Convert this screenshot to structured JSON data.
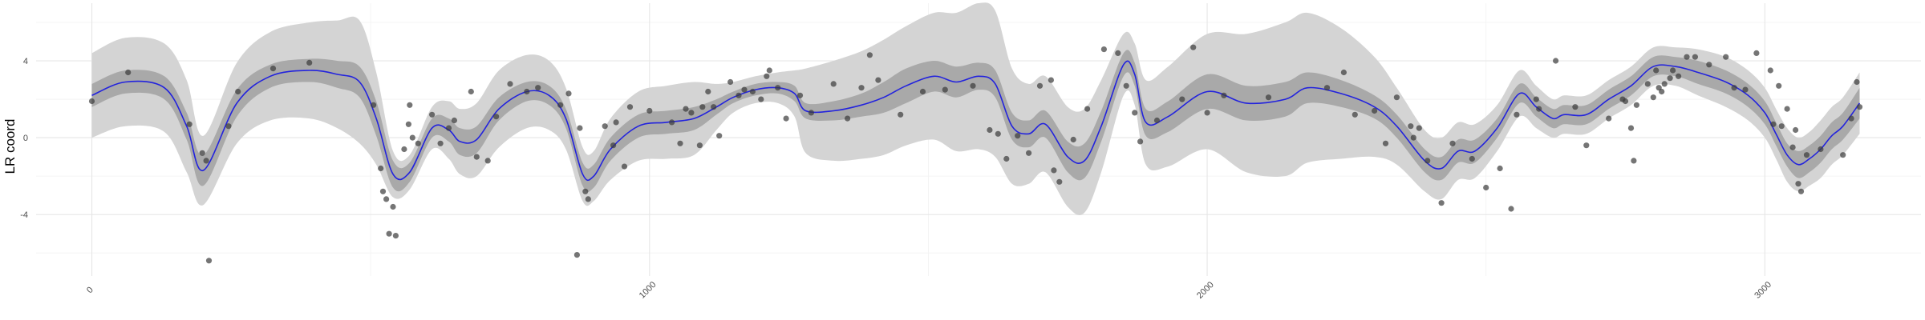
{
  "chart_data": {
    "type": "scatter",
    "title": "",
    "xlabel": "",
    "ylabel": "LR coord",
    "xlim": [
      -100,
      3280
    ],
    "ylim": [
      -7.2,
      7.0
    ],
    "x_ticks": [
      0,
      1000,
      2000,
      3000
    ],
    "x_tick_labels": [
      "0",
      "1000",
      "2000",
      "3000"
    ],
    "y_ticks": [
      -4,
      0,
      4
    ],
    "y_tick_labels": [
      "-4",
      "0",
      "4"
    ],
    "grid": true,
    "legend": "none",
    "colors": {
      "line": "#2323dd",
      "points": "#3a3a3a",
      "inner_band": "#a9a9a9",
      "outer_band": "#d4d4d4",
      "grid_major": "#e6e6e6",
      "grid_minor": "#f2f2f2"
    },
    "smooth_curve": {
      "x": [
        0,
        60,
        130,
        170,
        200,
        260,
        320,
        390,
        440,
        480,
        510,
        540,
        570,
        610,
        640,
        660,
        690,
        730,
        780,
        820,
        850,
        880,
        900,
        930,
        980,
        1030,
        1080,
        1120,
        1150,
        1190,
        1230,
        1260,
        1280,
        1330,
        1380,
        1420,
        1460,
        1510,
        1550,
        1590,
        1620,
        1650,
        1680,
        1710,
        1750,
        1780,
        1810,
        1850,
        1870,
        1890,
        1930,
        2000,
        2070,
        2140,
        2180,
        2240,
        2300,
        2340,
        2390,
        2420,
        2450,
        2480,
        2520,
        2560,
        2590,
        2620,
        2640,
        2680,
        2720,
        2760,
        2800,
        2840,
        2880,
        2930,
        2970,
        3000,
        3020,
        3040,
        3060,
        3080,
        3100,
        3120,
        3140,
        3170
      ],
      "y": [
        2.2,
        2.9,
        2.6,
        0.6,
        -1.7,
        1.8,
        3.2,
        3.5,
        3.3,
        2.9,
        1.0,
        -1.9,
        -1.8,
        0.5,
        0.4,
        -0.2,
        -0.1,
        1.5,
        2.4,
        2.2,
        1.0,
        -1.9,
        -2.0,
        -0.6,
        0.6,
        0.8,
        1.0,
        1.6,
        2.1,
        2.5,
        2.6,
        2.3,
        1.4,
        1.4,
        1.7,
        2.1,
        2.7,
        3.2,
        2.9,
        3.2,
        2.8,
        0.6,
        0.2,
        0.7,
        -1.0,
        -1.2,
        0.6,
        3.8,
        3.3,
        0.8,
        1.1,
        2.4,
        1.8,
        2.0,
        2.6,
        2.3,
        1.6,
        0.6,
        -1.2,
        -1.6,
        -0.7,
        -0.7,
        0.5,
        2.3,
        1.6,
        1.0,
        1.2,
        1.2,
        2.0,
        2.7,
        3.7,
        3.7,
        3.4,
        2.9,
        2.2,
        1.3,
        0.2,
        -0.9,
        -1.4,
        -1.1,
        -0.6,
        0.1,
        0.6,
        1.8
      ],
      "band_inner_halfwidth": [
        0.6,
        0.6,
        0.6,
        0.7,
        0.8,
        0.7,
        0.6,
        0.6,
        0.7,
        0.8,
        0.9,
        0.7,
        0.5,
        0.5,
        0.6,
        0.7,
        0.7,
        0.6,
        0.5,
        0.5,
        0.5,
        0.6,
        0.6,
        0.6,
        0.6,
        0.6,
        0.6,
        0.4,
        0.3,
        0.3,
        0.3,
        0.4,
        0.4,
        0.5,
        0.6,
        0.8,
        0.9,
        0.8,
        0.8,
        0.7,
        0.7,
        0.7,
        0.7,
        0.7,
        0.8,
        0.9,
        0.8,
        0.6,
        0.6,
        0.7,
        0.8,
        0.9,
        0.9,
        0.9,
        0.8,
        0.7,
        0.6,
        0.6,
        0.6,
        0.6,
        0.6,
        0.6,
        0.5,
        0.5,
        0.5,
        0.5,
        0.5,
        0.5,
        0.5,
        0.5,
        0.5,
        0.5,
        0.6,
        0.6,
        0.6,
        0.6,
        0.6,
        0.6,
        0.7,
        0.7,
        0.7,
        0.7,
        0.7,
        0.8
      ],
      "band_outer_halfwidth": [
        2.2,
        2.3,
        2.3,
        2.4,
        1.8,
        2.1,
        2.3,
        2.5,
        2.8,
        3.2,
        2.4,
        1.2,
        0.9,
        1.1,
        1.5,
        1.7,
        1.9,
        2.0,
        1.9,
        1.8,
        1.6,
        1.4,
        1.3,
        1.6,
        1.8,
        1.9,
        1.9,
        1.2,
        0.8,
        0.7,
        0.8,
        1.2,
        2.2,
        2.6,
        2.8,
        3.0,
        3.1,
        3.3,
        3.6,
        3.8,
        3.8,
        3.0,
        2.6,
        2.5,
        2.6,
        2.7,
        2.4,
        1.6,
        1.6,
        2.2,
        2.6,
        3.0,
        3.6,
        4.0,
        3.9,
        3.4,
        2.6,
        2.0,
        1.6,
        1.6,
        1.5,
        1.4,
        1.2,
        1.2,
        1.1,
        1.0,
        1.0,
        1.0,
        1.0,
        1.0,
        1.0,
        1.0,
        1.2,
        1.3,
        1.3,
        1.3,
        1.3,
        1.4,
        1.4,
        1.4,
        1.5,
        1.5,
        1.5,
        1.6
      ]
    },
    "points": [
      {
        "x": 0,
        "y": 1.9
      },
      {
        "x": 65,
        "y": 3.4
      },
      {
        "x": 175,
        "y": 0.7
      },
      {
        "x": 198,
        "y": -0.8
      },
      {
        "x": 205,
        "y": -1.2
      },
      {
        "x": 210,
        "y": -6.4
      },
      {
        "x": 245,
        "y": 0.6
      },
      {
        "x": 262,
        "y": 2.4
      },
      {
        "x": 325,
        "y": 3.6
      },
      {
        "x": 390,
        "y": 3.9
      },
      {
        "x": 505,
        "y": 1.7
      },
      {
        "x": 518,
        "y": -1.6
      },
      {
        "x": 522,
        "y": -2.8
      },
      {
        "x": 528,
        "y": -3.2
      },
      {
        "x": 533,
        "y": -5.0
      },
      {
        "x": 540,
        "y": -3.6
      },
      {
        "x": 545,
        "y": -5.1
      },
      {
        "x": 560,
        "y": -0.6
      },
      {
        "x": 568,
        "y": 0.7
      },
      {
        "x": 570,
        "y": 1.7
      },
      {
        "x": 575,
        "y": 0.0
      },
      {
        "x": 585,
        "y": -0.3
      },
      {
        "x": 610,
        "y": 1.2
      },
      {
        "x": 625,
        "y": -0.3
      },
      {
        "x": 640,
        "y": 0.5
      },
      {
        "x": 650,
        "y": 0.9
      },
      {
        "x": 680,
        "y": 2.4
      },
      {
        "x": 690,
        "y": -1.0
      },
      {
        "x": 710,
        "y": -1.2
      },
      {
        "x": 725,
        "y": 1.1
      },
      {
        "x": 750,
        "y": 2.8
      },
      {
        "x": 780,
        "y": 2.4
      },
      {
        "x": 800,
        "y": 2.6
      },
      {
        "x": 840,
        "y": 1.7
      },
      {
        "x": 855,
        "y": 2.3
      },
      {
        "x": 870,
        "y": -6.1
      },
      {
        "x": 875,
        "y": 0.5
      },
      {
        "x": 885,
        "y": -2.8
      },
      {
        "x": 890,
        "y": -3.2
      },
      {
        "x": 920,
        "y": 0.6
      },
      {
        "x": 935,
        "y": -0.4
      },
      {
        "x": 940,
        "y": 0.8
      },
      {
        "x": 955,
        "y": -1.5
      },
      {
        "x": 965,
        "y": 1.6
      },
      {
        "x": 1000,
        "y": 1.4
      },
      {
        "x": 1040,
        "y": 0.8
      },
      {
        "x": 1055,
        "y": -0.3
      },
      {
        "x": 1065,
        "y": 1.5
      },
      {
        "x": 1075,
        "y": 1.3
      },
      {
        "x": 1090,
        "y": -0.4
      },
      {
        "x": 1095,
        "y": 1.6
      },
      {
        "x": 1105,
        "y": 2.4
      },
      {
        "x": 1115,
        "y": 1.6
      },
      {
        "x": 1125,
        "y": 0.1
      },
      {
        "x": 1145,
        "y": 2.9
      },
      {
        "x": 1160,
        "y": 2.2
      },
      {
        "x": 1170,
        "y": 2.5
      },
      {
        "x": 1185,
        "y": 2.4
      },
      {
        "x": 1200,
        "y": 2.0
      },
      {
        "x": 1210,
        "y": 3.2
      },
      {
        "x": 1215,
        "y": 3.5
      },
      {
        "x": 1230,
        "y": 2.6
      },
      {
        "x": 1245,
        "y": 1.0
      },
      {
        "x": 1270,
        "y": 2.2
      },
      {
        "x": 1290,
        "y": 1.3
      },
      {
        "x": 1330,
        "y": 2.8
      },
      {
        "x": 1355,
        "y": 1.0
      },
      {
        "x": 1380,
        "y": 2.6
      },
      {
        "x": 1395,
        "y": 4.3
      },
      {
        "x": 1410,
        "y": 3.0
      },
      {
        "x": 1450,
        "y": 1.2
      },
      {
        "x": 1490,
        "y": 2.4
      },
      {
        "x": 1530,
        "y": 2.5
      },
      {
        "x": 1580,
        "y": 2.7
      },
      {
        "x": 1610,
        "y": 0.4
      },
      {
        "x": 1625,
        "y": 0.2
      },
      {
        "x": 1640,
        "y": -1.1
      },
      {
        "x": 1660,
        "y": 0.1
      },
      {
        "x": 1680,
        "y": -0.8
      },
      {
        "x": 1700,
        "y": 2.7
      },
      {
        "x": 1720,
        "y": 3.0
      },
      {
        "x": 1725,
        "y": -1.7
      },
      {
        "x": 1735,
        "y": -2.3
      },
      {
        "x": 1760,
        "y": -0.1
      },
      {
        "x": 1785,
        "y": 1.5
      },
      {
        "x": 1815,
        "y": 4.6
      },
      {
        "x": 1840,
        "y": 4.4
      },
      {
        "x": 1855,
        "y": 2.7
      },
      {
        "x": 1870,
        "y": 1.3
      },
      {
        "x": 1880,
        "y": -0.2
      },
      {
        "x": 1910,
        "y": 0.9
      },
      {
        "x": 1955,
        "y": 2.0
      },
      {
        "x": 1975,
        "y": 4.7
      },
      {
        "x": 2000,
        "y": 1.3
      },
      {
        "x": 2030,
        "y": 2.2
      },
      {
        "x": 2110,
        "y": 2.1
      },
      {
        "x": 2215,
        "y": 2.6
      },
      {
        "x": 2245,
        "y": 3.4
      },
      {
        "x": 2265,
        "y": 1.2
      },
      {
        "x": 2300,
        "y": 1.4
      },
      {
        "x": 2320,
        "y": -0.3
      },
      {
        "x": 2340,
        "y": 2.1
      },
      {
        "x": 2365,
        "y": 0.6
      },
      {
        "x": 2370,
        "y": 0.0
      },
      {
        "x": 2380,
        "y": 0.5
      },
      {
        "x": 2395,
        "y": -1.2
      },
      {
        "x": 2420,
        "y": -3.4
      },
      {
        "x": 2440,
        "y": -0.3
      },
      {
        "x": 2475,
        "y": -1.1
      },
      {
        "x": 2500,
        "y": -2.6
      },
      {
        "x": 2525,
        "y": -1.6
      },
      {
        "x": 2545,
        "y": -3.7
      },
      {
        "x": 2555,
        "y": 1.2
      },
      {
        "x": 2590,
        "y": 2.0
      },
      {
        "x": 2595,
        "y": 1.5
      },
      {
        "x": 2625,
        "y": 4.0
      },
      {
        "x": 2660,
        "y": 1.6
      },
      {
        "x": 2680,
        "y": -0.4
      },
      {
        "x": 2720,
        "y": 1.0
      },
      {
        "x": 2745,
        "y": 2.0
      },
      {
        "x": 2750,
        "y": 1.9
      },
      {
        "x": 2760,
        "y": 0.5
      },
      {
        "x": 2765,
        "y": -1.2
      },
      {
        "x": 2770,
        "y": 1.7
      },
      {
        "x": 2790,
        "y": 2.8
      },
      {
        "x": 2800,
        "y": 2.1
      },
      {
        "x": 2805,
        "y": 3.5
      },
      {
        "x": 2810,
        "y": 2.6
      },
      {
        "x": 2815,
        "y": 2.4
      },
      {
        "x": 2820,
        "y": 2.8
      },
      {
        "x": 2830,
        "y": 3.1
      },
      {
        "x": 2835,
        "y": 3.5
      },
      {
        "x": 2845,
        "y": 3.2
      },
      {
        "x": 2860,
        "y": 4.2
      },
      {
        "x": 2875,
        "y": 4.2
      },
      {
        "x": 2900,
        "y": 3.8
      },
      {
        "x": 2930,
        "y": 4.2
      },
      {
        "x": 2945,
        "y": 2.6
      },
      {
        "x": 2965,
        "y": 2.5
      },
      {
        "x": 2985,
        "y": 4.4
      },
      {
        "x": 3010,
        "y": 3.5
      },
      {
        "x": 3015,
        "y": 0.7
      },
      {
        "x": 3025,
        "y": 2.7
      },
      {
        "x": 3030,
        "y": 0.6
      },
      {
        "x": 3040,
        "y": 1.5
      },
      {
        "x": 3050,
        "y": -0.5
      },
      {
        "x": 3055,
        "y": 0.4
      },
      {
        "x": 3060,
        "y": -2.4
      },
      {
        "x": 3065,
        "y": -2.8
      },
      {
        "x": 3075,
        "y": -0.9
      },
      {
        "x": 3100,
        "y": -0.6
      },
      {
        "x": 3140,
        "y": -0.9
      },
      {
        "x": 3155,
        "y": 1.0
      },
      {
        "x": 3165,
        "y": 2.9
      },
      {
        "x": 3170,
        "y": 1.6
      }
    ]
  }
}
